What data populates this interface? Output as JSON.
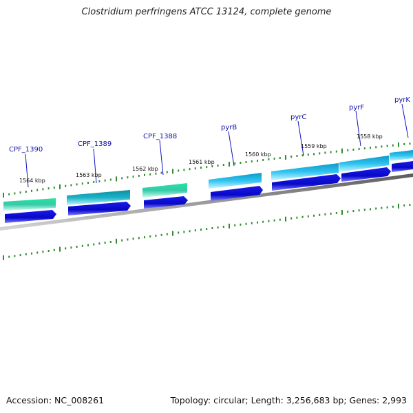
{
  "title": "Clostridium perfringens ATCC 13124, complete genome",
  "footer": {
    "accession": "Accession: NC_008261",
    "summary": "Topology: circular; Length: 3,256,683 bp; Genes: 2,993"
  },
  "colors": {
    "backbone": "#8c8c8c",
    "cds_forward": "#0a0ae0",
    "cds_forward_light": "#6b6bff",
    "tick": "#2e8b2e",
    "label_line": "#1010c0",
    "gene_teal": "#12a8b0",
    "gene_cyan": "#1fb8e6",
    "gene_mint": "#1ee89a"
  },
  "kbp_labels": [
    "1564 kbp",
    "1563 kbp",
    "1562 kbp",
    "1561 kbp",
    "1560 kbp",
    "1559 kbp",
    "1558 kbp"
  ],
  "genes": [
    {
      "label": "CPF_1390",
      "color": "gene_mint"
    },
    {
      "label": "CPF_1389",
      "color": "gene_teal"
    },
    {
      "label": "CPF_1388",
      "color": "gene_mint"
    },
    {
      "label": "pyrB",
      "color": "gene_cyan"
    },
    {
      "label": "pyrC",
      "color": "gene_cyan"
    },
    {
      "label": "pyrF",
      "color": "gene_cyan"
    },
    {
      "label": "pyrK",
      "color": "gene_cyan"
    }
  ]
}
